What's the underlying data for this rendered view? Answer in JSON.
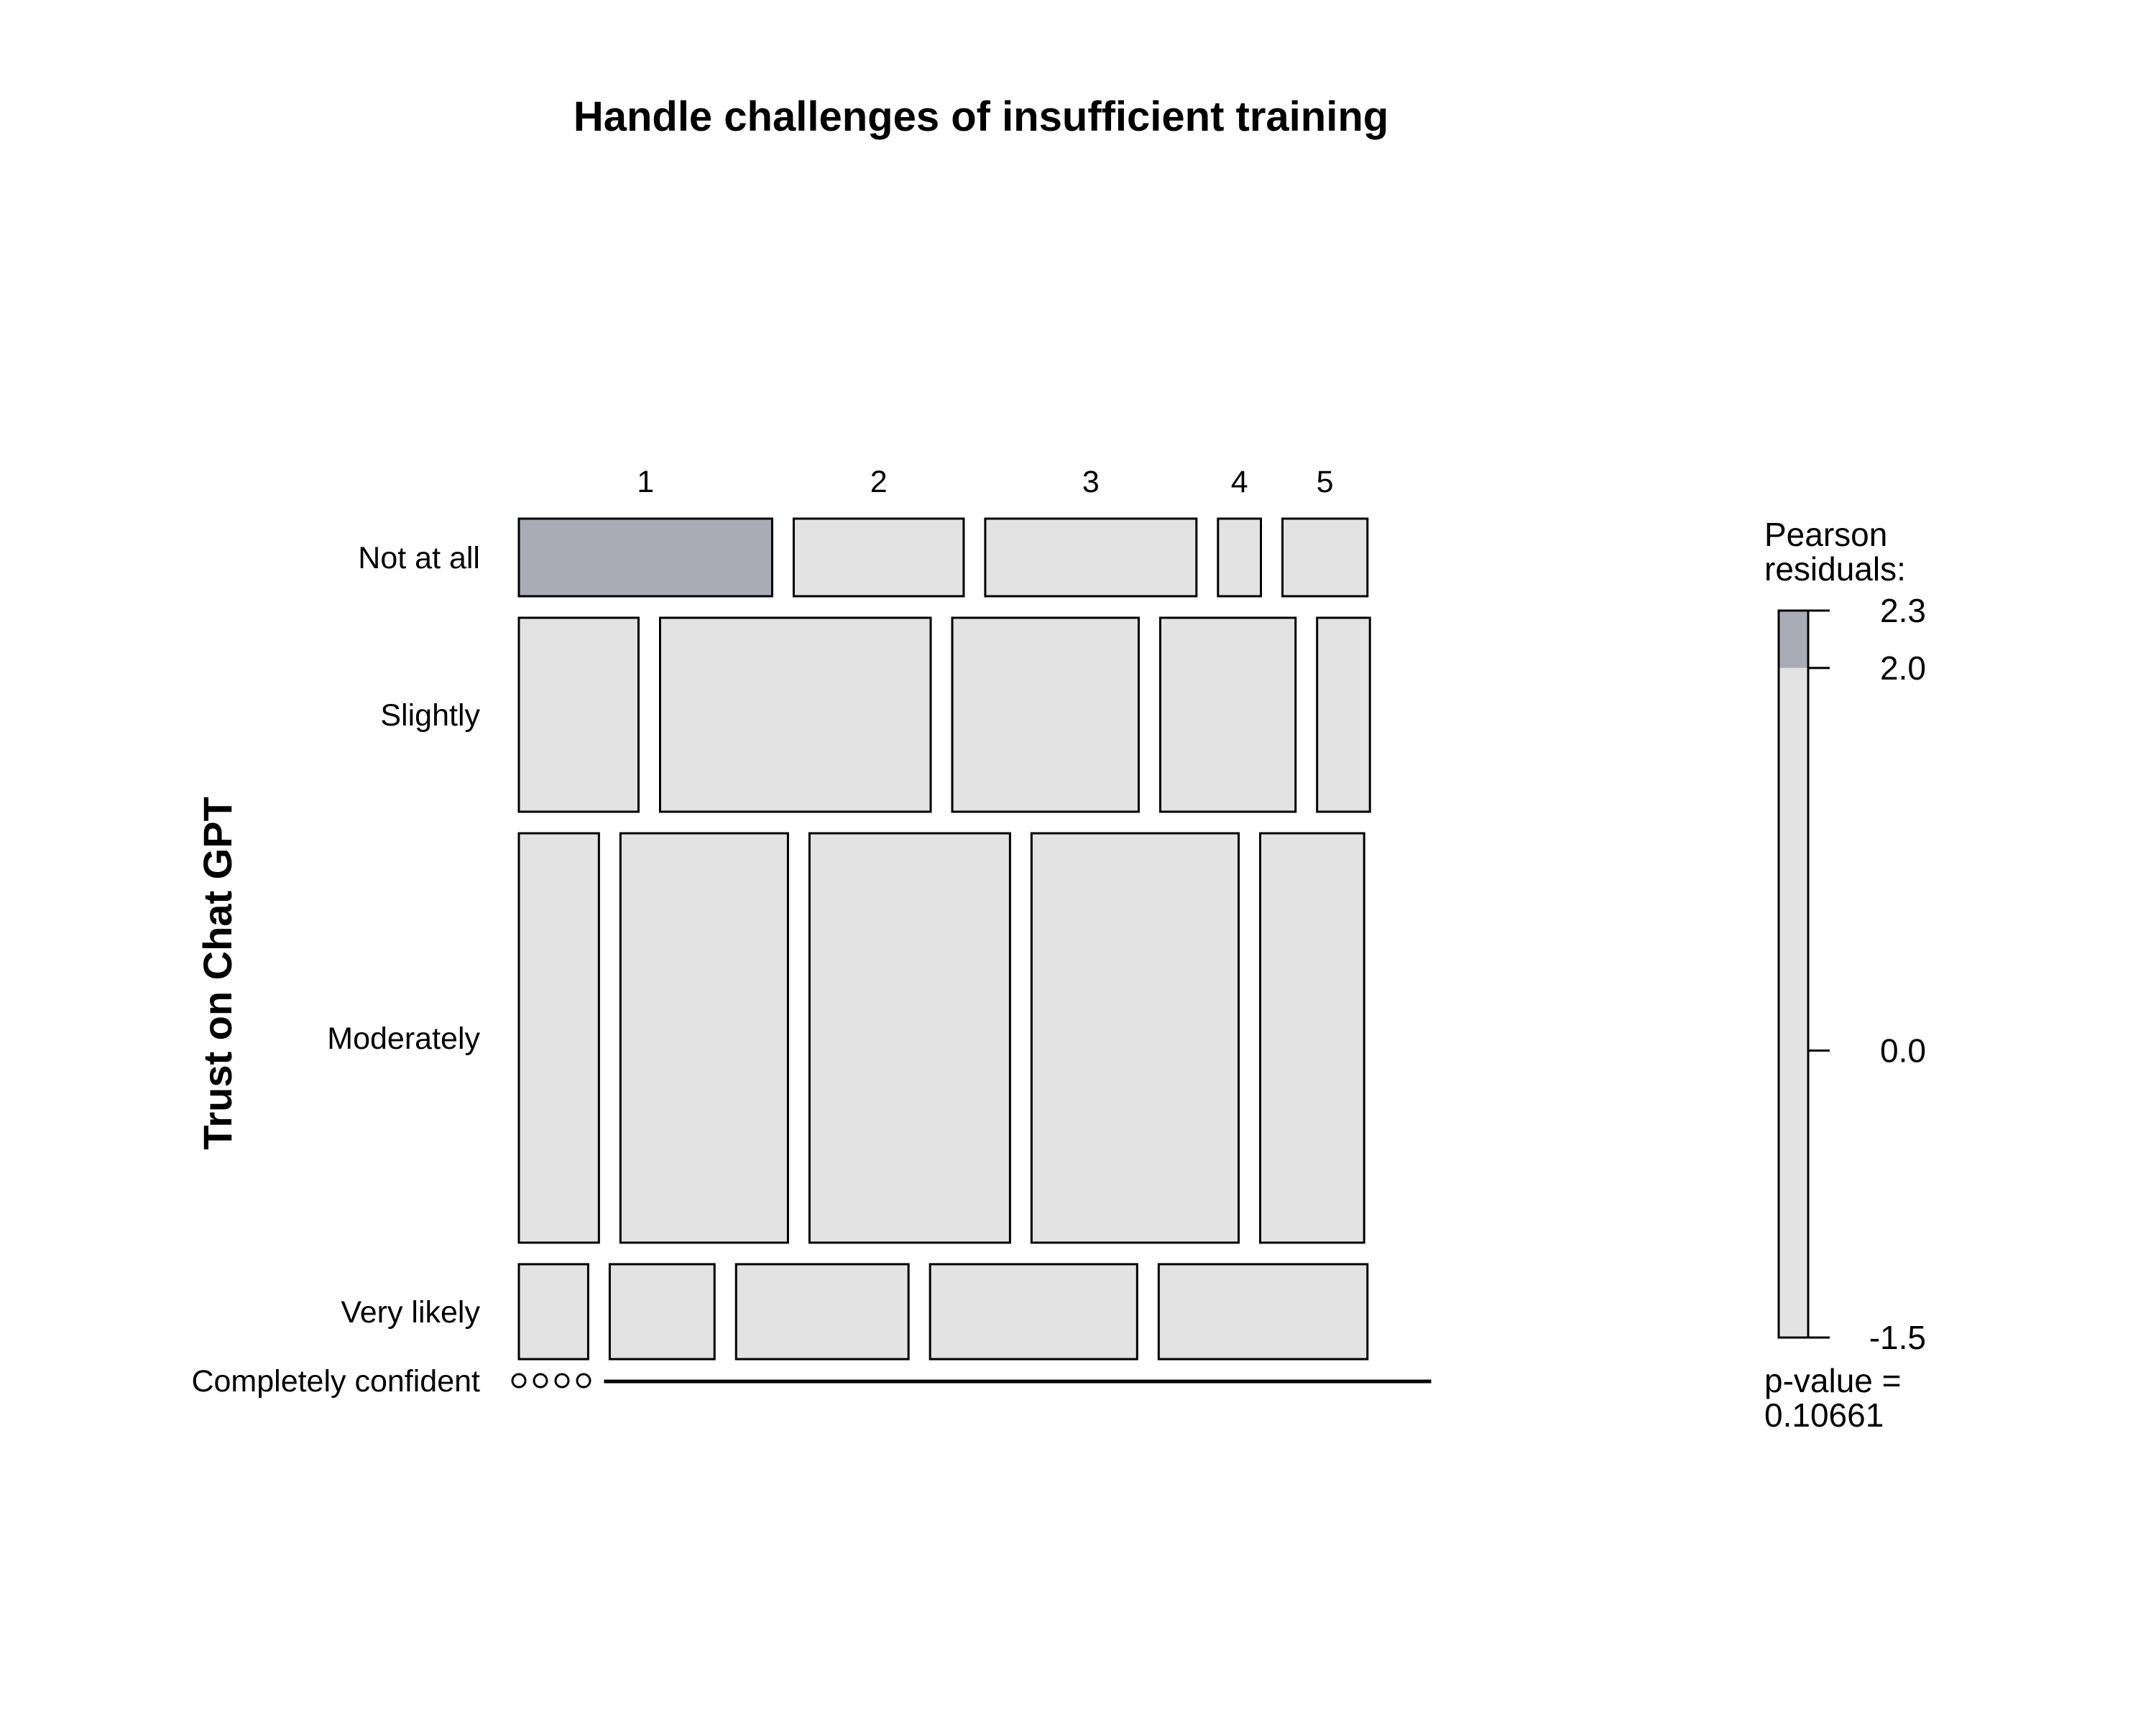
{
  "chart_data": {
    "type": "mosaic",
    "title": "Handle challenges of insufficient training",
    "xlabel": "",
    "ylabel": "Trust on Chat GPT",
    "columns": [
      "1",
      "2",
      "3",
      "4",
      "5"
    ],
    "rows": [
      "Not at all",
      "Slightly",
      "Moderately",
      "Very likely",
      "Completely confident"
    ],
    "row_proportions": [
      0.094,
      0.235,
      0.496,
      0.115,
      0.0
    ],
    "cell_proportions": [
      [
        0.307,
        0.206,
        0.256,
        0.052,
        0.103
      ],
      [
        0.145,
        0.328,
        0.226,
        0.164,
        0.064
      ],
      [
        0.097,
        0.203,
        0.243,
        0.251,
        0.126
      ],
      [
        0.084,
        0.127,
        0.209,
        0.251,
        0.253
      ],
      [
        0.0,
        0.0,
        0.0,
        0.0,
        1.0
      ]
    ],
    "cell_shading": [
      [
        "high",
        "neutral",
        "neutral",
        "neutral",
        "neutral"
      ],
      [
        "neutral",
        "neutral",
        "neutral",
        "neutral",
        "neutral"
      ],
      [
        "neutral",
        "neutral",
        "neutral",
        "neutral",
        "neutral"
      ],
      [
        "neutral",
        "neutral",
        "neutral",
        "neutral",
        "neutral"
      ],
      [
        "neutral",
        "neutral",
        "neutral",
        "neutral",
        "neutral"
      ]
    ],
    "legend": {
      "title_line1": "Pearson",
      "title_line2": "residuals:",
      "ticks": [
        "2.3",
        "2.0",
        "0.0",
        "-1.5"
      ],
      "tick_values": [
        2.3,
        2.0,
        0.0,
        -1.5
      ],
      "range": [
        -1.5,
        2.3
      ],
      "shade_threshold": 2.0,
      "pvalue_line1": "p-value =",
      "pvalue_line2": "0.10661"
    },
    "colors": {
      "neutral": "#e3e3e3",
      "high": "#a9acb7",
      "border": "#000000"
    }
  }
}
